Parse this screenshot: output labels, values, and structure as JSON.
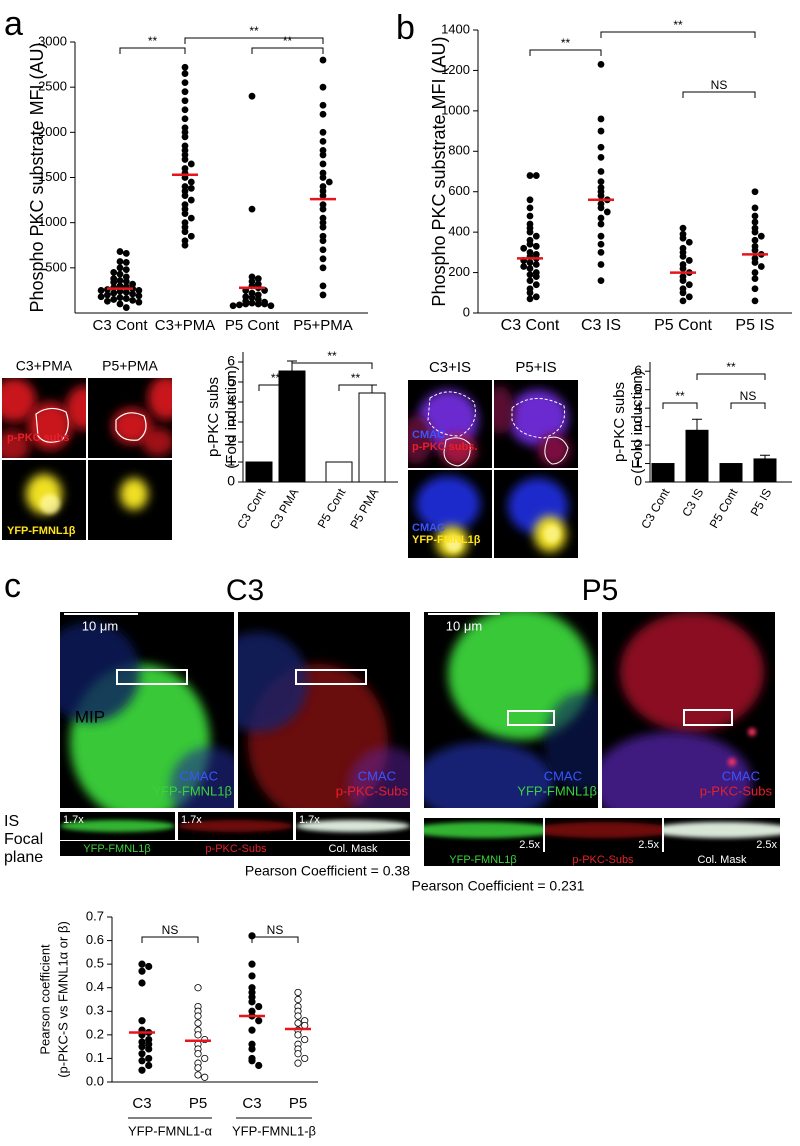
{
  "panel_labels": [
    "a",
    "b",
    "c"
  ],
  "micrographs": {
    "a": {
      "columns": [
        "C3+PMA",
        "P5+PMA"
      ],
      "top_label": "p-PKC subs",
      "bottom_label": "YFP-FMNL1β"
    },
    "b": {
      "columns": [
        "C3+IS",
        "P5+IS"
      ],
      "top_labels": [
        "CMAC",
        "p-PKC subs."
      ],
      "bottom_labels": [
        "CMAC",
        "YFP-FMNL1β"
      ]
    },
    "c": {
      "titles": [
        "C3",
        "P5"
      ],
      "scale_bar": "10 μm",
      "row_labels": [
        "MIP",
        "IS",
        "Focal",
        "plane"
      ],
      "channel_labels": [
        "CMAC",
        "YFP-FMNL1β",
        "p-PKC-Subs",
        "Col. Mask"
      ],
      "zoom": [
        "1.7x",
        "2.5x"
      ],
      "pearson": [
        "Pearson Coefficient = 0.38",
        "Pearson Coefficient = 0.231"
      ]
    }
  },
  "chart_data": [
    {
      "type": "dot",
      "ylabel": [
        "Phospho PKC substrate MFI (AU)"
      ],
      "categories": [
        "C3 Cont",
        "C3+PMA",
        "P5 Cont",
        "P5+PMA"
      ],
      "values": [
        [
          680,
          660,
          570,
          560,
          500,
          480,
          450,
          430,
          400,
          380,
          360,
          350,
          340,
          320,
          300,
          290,
          280,
          270,
          260,
          250,
          250,
          240,
          230,
          220,
          210,
          200,
          190,
          180,
          170,
          160,
          150,
          140,
          130,
          120,
          100,
          60
        ],
        [
          2720,
          2650,
          2550,
          2450,
          2350,
          2250,
          2150,
          2050,
          2000,
          1950,
          1850,
          1800,
          1750,
          1700,
          1650,
          1600,
          1550,
          1500,
          1450,
          1400,
          1380,
          1350,
          1300,
          1250,
          1200,
          1150,
          1100,
          1050,
          1000,
          950,
          900,
          850,
          800,
          750
        ],
        [
          2400,
          1150,
          400,
          380,
          350,
          320,
          300,
          280,
          250,
          250,
          220,
          200,
          180,
          170,
          150,
          130,
          120,
          110,
          100,
          100,
          100,
          90,
          80,
          80
        ],
        [
          2800,
          2500,
          2300,
          2200,
          2000,
          1900,
          1800,
          1750,
          1650,
          1550,
          1500,
          1450,
          1400,
          1350,
          1300,
          1200,
          1150,
          1050,
          1000,
          950,
          850,
          800,
          700,
          600,
          500,
          300,
          200
        ]
      ],
      "means": [
        270,
        1530,
        280,
        1260
      ],
      "point_color": "#000000",
      "filled": [
        true,
        true,
        true,
        true
      ],
      "mean_color": "#e8141b",
      "ylim": [
        0,
        3000
      ],
      "yticks": [
        500,
        1000,
        1500,
        2000,
        2500,
        3000
      ],
      "comparisons": [
        {
          "groups": [
            "C3 Cont",
            "C3+PMA"
          ],
          "label": "**"
        },
        {
          "groups": [
            "C3+PMA",
            "P5+PMA"
          ],
          "label": "**"
        },
        {
          "groups": [
            "P5 Cont",
            "P5+PMA"
          ],
          "label": "**"
        }
      ]
    },
    {
      "type": "dot",
      "ylabel": [
        "Phospho PKC substrate MFI (AU)"
      ],
      "categories": [
        "C3 Cont",
        "C3 IS",
        "P5 Cont",
        "P5 IS"
      ],
      "values": [
        [
          680,
          680,
          560,
          520,
          480,
          440,
          420,
          400,
          380,
          360,
          340,
          330,
          320,
          300,
          290,
          280,
          270,
          260,
          250,
          240,
          230,
          220,
          200,
          190,
          180,
          160,
          140,
          120,
          100,
          80,
          70
        ],
        [
          1230,
          960,
          900,
          820,
          770,
          700,
          650,
          620,
          600,
          580,
          560,
          540,
          520,
          500,
          470,
          440,
          380,
          340,
          300,
          240,
          160
        ],
        [
          420,
          390,
          370,
          350,
          320,
          300,
          280,
          260,
          240,
          220,
          200,
          180,
          160,
          140,
          120,
          100,
          80,
          60
        ],
        [
          600,
          520,
          480,
          450,
          420,
          400,
          380,
          360,
          330,
          310,
          290,
          270,
          250,
          230,
          200,
          170,
          120,
          60
        ]
      ],
      "means": [
        270,
        560,
        200,
        290
      ],
      "point_color": "#000000",
      "filled": [
        true,
        true,
        true,
        true
      ],
      "mean_color": "#e8141b",
      "ylim": [
        0,
        1400
      ],
      "yticks": [
        0,
        200,
        400,
        600,
        800,
        1000,
        1200,
        1400
      ],
      "comparisons": [
        {
          "groups": [
            "C3 Cont",
            "C3 IS"
          ],
          "label": "**"
        },
        {
          "groups": [
            "C3 IS",
            "P5 IS"
          ],
          "label": "**"
        },
        {
          "groups": [
            "P5 Cont",
            "P5 IS"
          ],
          "label": "NS"
        }
      ]
    },
    {
      "type": "bar",
      "ylabel": [
        "p-PKC subs",
        "(Fold induction)"
      ],
      "categories": [
        "C3 Cont",
        "C3 PMA",
        "P5 Cont",
        "P5 PMA"
      ],
      "values": [
        1,
        5.55,
        1,
        4.45
      ],
      "errors": [
        null,
        0.5,
        null,
        0.4
      ],
      "colors": [
        "#000000",
        "#000000",
        "#ffffff",
        "#ffffff"
      ],
      "ylim": [
        0,
        6.5
      ],
      "yticks": [
        0,
        1,
        2,
        3,
        4,
        5,
        6
      ],
      "comparisons": [
        {
          "groups": [
            "C3 Cont",
            "C3 PMA"
          ],
          "label": "**"
        },
        {
          "groups": [
            "C3 PMA",
            "P5 PMA"
          ],
          "label": "**"
        },
        {
          "groups": [
            "P5 Cont",
            "P5 PMA"
          ],
          "label": "**"
        }
      ]
    },
    {
      "type": "bar",
      "ylabel": [
        "p-PKC subs",
        "(Fold induction)"
      ],
      "categories": [
        "C3 Cont",
        "C3 IS",
        "P5 Cont",
        "P5 IS"
      ],
      "values": [
        1,
        2.8,
        1,
        1.25
      ],
      "errors": [
        null,
        0.6,
        null,
        0.2
      ],
      "colors": [
        "#000000",
        "#000000",
        "#000000",
        "#000000"
      ],
      "ylim": [
        0,
        6.5
      ],
      "yticks": [
        0,
        1,
        2,
        3,
        4,
        5,
        6
      ],
      "comparisons": [
        {
          "groups": [
            "C3 Cont",
            "C3 IS"
          ],
          "label": "**"
        },
        {
          "groups": [
            "C3 IS",
            "P5 IS"
          ],
          "label": "**"
        },
        {
          "groups": [
            "P5 Cont",
            "P5 IS"
          ],
          "label": "NS"
        }
      ]
    },
    {
      "type": "dot",
      "ylabel": [
        "Pearson coefficient",
        "(p-PKC-S vs FMNL1α or β)"
      ],
      "categories": [
        "C3",
        "P5",
        "C3",
        "P5"
      ],
      "group_labels": [
        "YFP-FMNL1-α",
        "YFP-FMNL1-β"
      ],
      "values": [
        [
          0.5,
          0.49,
          0.47,
          0.42,
          0.26,
          0.22,
          0.21,
          0.2,
          0.18,
          0.17,
          0.16,
          0.15,
          0.14,
          0.12,
          0.1,
          0.09,
          0.07,
          0.05
        ],
        [
          0.4,
          0.32,
          0.3,
          0.28,
          0.25,
          0.22,
          0.2,
          0.18,
          0.16,
          0.14,
          0.12,
          0.1,
          0.08,
          0.06,
          0.03,
          0.02
        ],
        [
          0.62,
          0.5,
          0.45,
          0.4,
          0.38,
          0.36,
          0.34,
          0.32,
          0.3,
          0.28,
          0.26,
          0.22,
          0.16,
          0.14,
          0.1,
          0.09,
          0.07
        ],
        [
          0.38,
          0.35,
          0.32,
          0.3,
          0.28,
          0.26,
          0.25,
          0.24,
          0.22,
          0.2,
          0.18,
          0.16,
          0.14,
          0.12,
          0.1,
          0.08
        ]
      ],
      "means": [
        0.21,
        0.175,
        0.28,
        0.225
      ],
      "point_color": "#000000",
      "filled": [
        true,
        false,
        true,
        false
      ],
      "mean_color": "#e8141b",
      "ylim": [
        0,
        0.7
      ],
      "yticks": [
        {
          "value": 0,
          "label": "0.0"
        },
        0.1,
        0.2,
        0.3,
        0.4,
        0.5,
        0.6,
        0.7
      ],
      "comparisons": [
        {
          "groups": [
            0,
            1
          ],
          "label": "NS"
        },
        {
          "groups": [
            2,
            3
          ],
          "label": "NS"
        }
      ]
    }
  ]
}
